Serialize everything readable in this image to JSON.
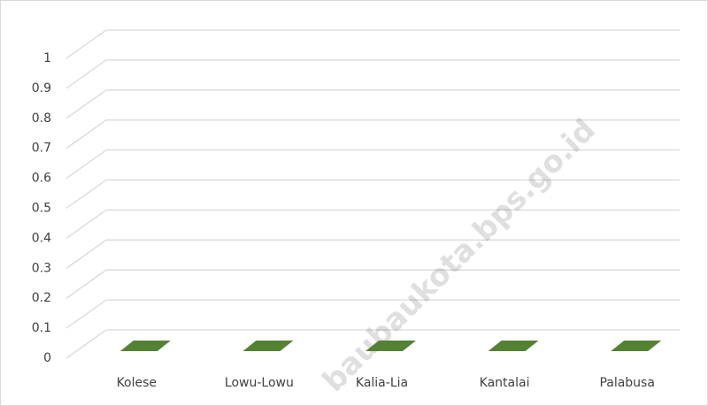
{
  "chart_data": {
    "type": "bar3d",
    "categories": [
      "Kolese",
      "Lowu-Lowu",
      "Kalia-Lia",
      "Kantalai",
      "Palabusa"
    ],
    "values": [
      0,
      0,
      0,
      0,
      0
    ],
    "color": "#548235",
    "ylim": [
      0,
      1
    ],
    "yticks": [
      0,
      0.1,
      0.2,
      0.3,
      0.4,
      0.5,
      0.6,
      0.7,
      0.8,
      0.9,
      1
    ],
    "grid": true,
    "watermark": "baubaukota.bps.go.id"
  }
}
